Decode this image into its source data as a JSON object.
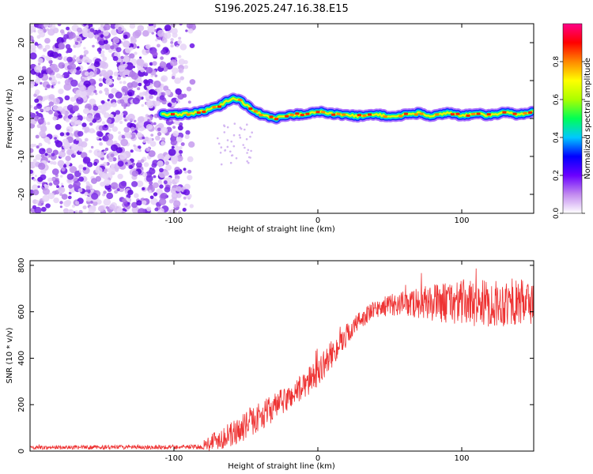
{
  "title": "S196.2025.247.16.38.E15",
  "chart_data": [
    {
      "type": "heatmap",
      "panel": "top",
      "xlabel": "Height of straight line (km)",
      "ylabel": "Frequency (Hz)",
      "xlim": [
        -200,
        150
      ],
      "ylim": [
        -25,
        25
      ],
      "xticks": [
        -100,
        0,
        100
      ],
      "yticks": [
        -20,
        -10,
        0,
        10,
        20
      ],
      "xtick_labels": [
        "-100",
        "0",
        "100"
      ],
      "ytick_labels": [
        "-20",
        "-10",
        "0",
        "10",
        "20"
      ],
      "noise_region_x": [
        -200,
        -87
      ],
      "trace_start_x": -108,
      "trace": {
        "x": [
          -108,
          -100,
          -90,
          -80,
          -70,
          -62,
          -58,
          -54,
          -50,
          -46,
          -42,
          -38,
          -34,
          -30,
          -20,
          -10,
          0,
          10,
          20,
          30,
          40,
          50,
          60,
          70,
          80,
          90,
          100,
          110,
          120,
          130,
          140,
          150
        ],
        "freq": [
          1.0,
          1.0,
          1.3,
          1.8,
          3.0,
          4.8,
          5.3,
          4.8,
          3.6,
          2.6,
          1.6,
          0.9,
          0.3,
          0.0,
          0.8,
          1.2,
          1.8,
          1.2,
          0.9,
          0.6,
          1.2,
          0.4,
          1.0,
          1.4,
          0.6,
          1.6,
          0.8,
          1.2,
          0.8,
          1.6,
          1.0,
          2.0
        ]
      },
      "colorbar": {
        "label": "Normalized spectral amplitude",
        "range": [
          0,
          1
        ],
        "ticks": [
          0.0,
          0.2,
          0.4,
          0.6,
          0.8
        ],
        "tick_labels": [
          "0.0",
          "0.2",
          "0.4",
          "0.6",
          "0.8"
        ],
        "colors": [
          "#ffffff",
          "#c28aef",
          "#6a00ff",
          "#0000ff",
          "#00c8ff",
          "#00ff55",
          "#aaff00",
          "#ffff00",
          "#ff8800",
          "#ff0000",
          "#ff0088"
        ]
      }
    },
    {
      "type": "line",
      "panel": "bottom",
      "xlabel": "Height of straight line (km)",
      "ylabel": "SNR (10 * v/v)",
      "xlim": [
        -200,
        150
      ],
      "ylim": [
        0,
        820
      ],
      "xticks": [
        -100,
        0,
        100
      ],
      "yticks": [
        0,
        200,
        400,
        600,
        800
      ],
      "xtick_labels": [
        "-100",
        "0",
        "100"
      ],
      "ytick_labels": [
        "0",
        "200",
        "400",
        "600",
        "800"
      ],
      "series": [
        {
          "name": "SNR",
          "color": "#ee3333",
          "envelope_x": [
            -200,
            -80,
            -75,
            -60,
            -50,
            -40,
            -30,
            -20,
            -10,
            0,
            10,
            20,
            30,
            40,
            50,
            60,
            80,
            100,
            120,
            150
          ],
          "envelope_mean": [
            15,
            18,
            40,
            70,
            110,
            150,
            190,
            230,
            280,
            340,
            420,
            500,
            570,
            610,
            630,
            635,
            640,
            640,
            635,
            640
          ],
          "noise_amplitude": [
            8,
            10,
            40,
            55,
            60,
            60,
            60,
            55,
            60,
            60,
            60,
            50,
            40,
            40,
            45,
            55,
            80,
            100,
            100,
            100
          ]
        }
      ]
    }
  ]
}
